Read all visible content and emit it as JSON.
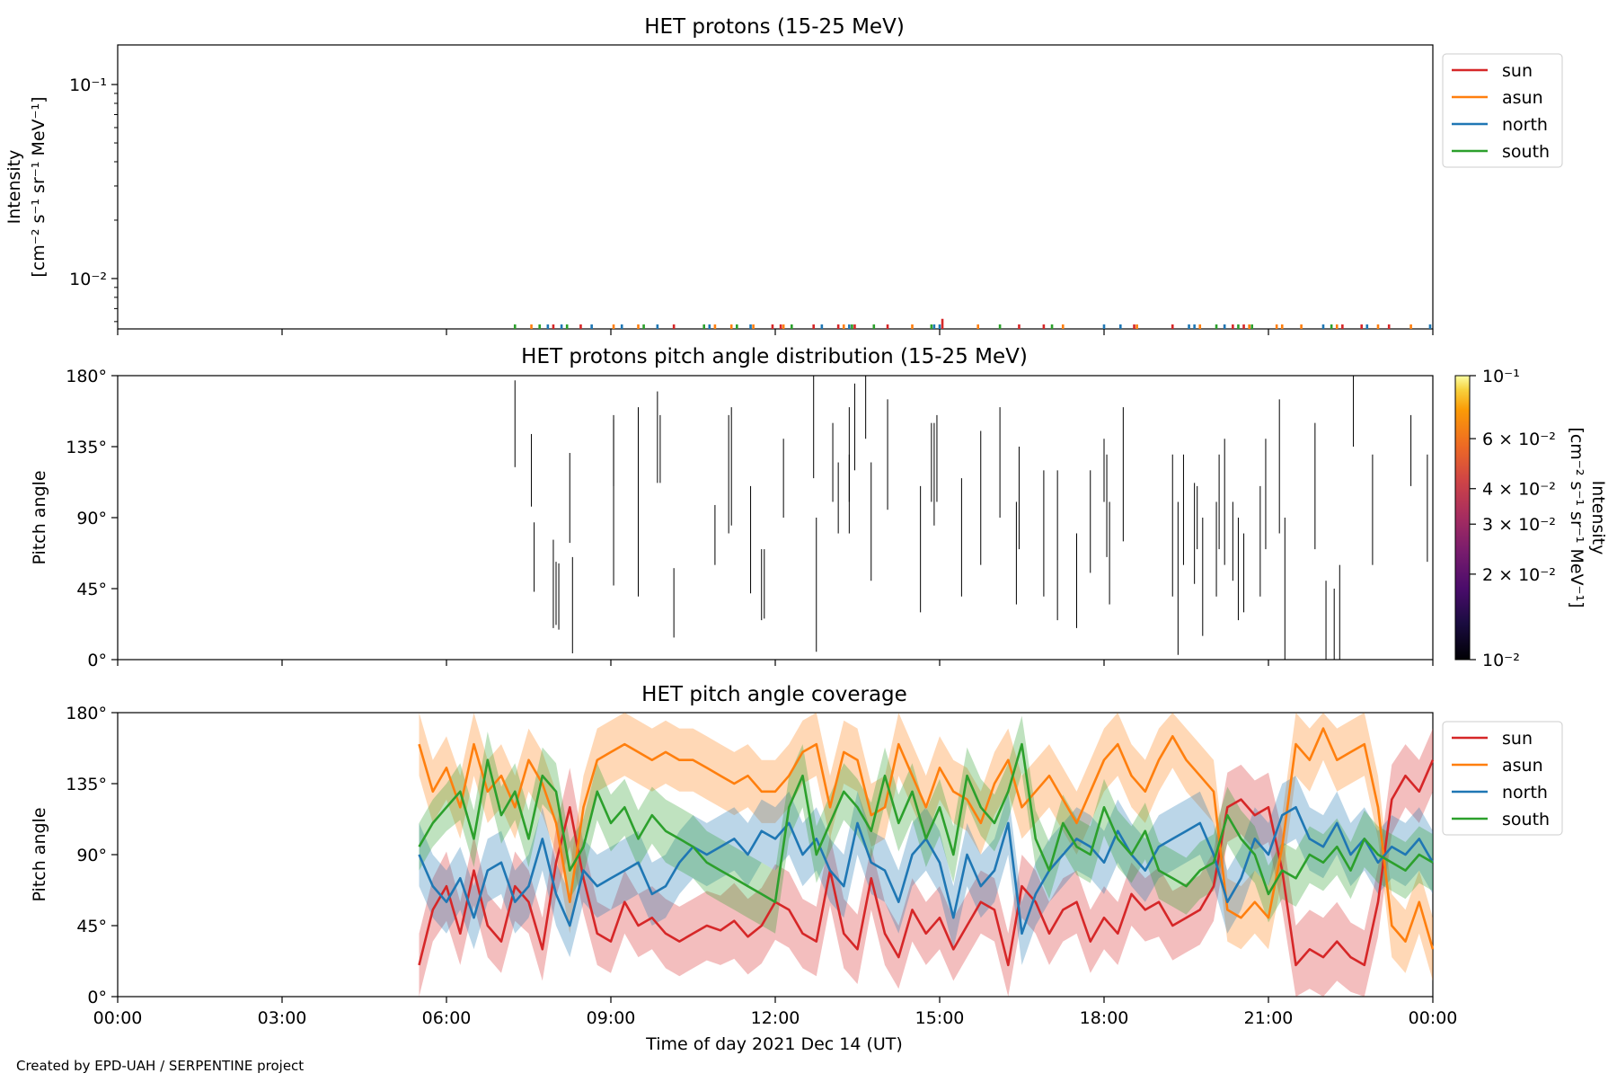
{
  "footer": "Created by EPD-UAH / SERPENTINE project",
  "x_ticks": [
    "00:00",
    "03:00",
    "06:00",
    "09:00",
    "12:00",
    "15:00",
    "18:00",
    "21:00",
    "00:00"
  ],
  "xlabel": "Time of day 2021 Dec 14 (UT)",
  "colors": {
    "sun": "#d62728",
    "asun": "#ff7f0e",
    "north": "#1f77b4",
    "south": "#2ca02c"
  },
  "chart_data": [
    {
      "type": "line",
      "title": "HET protons (15-25 MeV)",
      "ylabel_line1": "Intensity",
      "ylabel_line2": "[cm⁻² s⁻¹ sr⁻¹ MeV⁻¹]",
      "yscale": "log",
      "ylim": [
        0.0055,
        0.16
      ],
      "yticks": [
        {
          "v": 0.1,
          "label": "10⁻¹"
        },
        {
          "v": 0.01,
          "label": "10⁻²"
        }
      ],
      "xlim_hours": [
        0,
        24
      ],
      "legend": [
        "sun",
        "asun",
        "north",
        "south"
      ],
      "legend_position": "upper-right-outside",
      "series": [
        {
          "name": "sun",
          "x_hours": [
            7.95,
            8.45,
            10.15,
            11.95,
            12.1,
            12.7,
            13.15,
            13.45,
            14.05,
            15.05,
            16.45,
            16.9,
            18.55,
            19.25,
            20.2,
            20.35,
            20.55,
            22.35,
            22.7,
            23.2
          ],
          "y": [
            0.0058,
            0.0058,
            0.0058,
            0.0058,
            0.0058,
            0.0058,
            0.0058,
            0.0058,
            0.0058,
            0.0062,
            0.0058,
            0.0058,
            0.0058,
            0.0058,
            0.0058,
            0.0058,
            0.0058,
            0.0058,
            0.0058,
            0.0058
          ]
        },
        {
          "name": "asun",
          "x_hours": [
            7.55,
            9.05,
            9.5,
            10.9,
            11.2,
            11.6,
            12.15,
            13.25,
            14.5,
            15.7,
            17.25,
            18.6,
            19.75,
            20.65,
            21.15,
            21.25,
            21.6,
            22.25,
            23.0,
            23.6
          ],
          "y": [
            0.0058,
            0.0058,
            0.0058,
            0.0058,
            0.0058,
            0.0058,
            0.0058,
            0.0058,
            0.0058,
            0.0058,
            0.0058,
            0.0058,
            0.0058,
            0.0058,
            0.0058,
            0.0058,
            0.0058,
            0.0058,
            0.0058,
            0.0058
          ]
        },
        {
          "name": "north",
          "x_hours": [
            7.85,
            8.1,
            8.65,
            9.2,
            9.85,
            10.8,
            11.55,
            12.85,
            13.35,
            14.9,
            15.0,
            18.0,
            18.3,
            19.55,
            19.65,
            20.2,
            22.0,
            22.8,
            23.95
          ],
          "y": [
            0.0058,
            0.0058,
            0.0058,
            0.0058,
            0.0058,
            0.0058,
            0.0058,
            0.0058,
            0.0058,
            0.0058,
            0.0058,
            0.0058,
            0.0058,
            0.0058,
            0.0058,
            0.0058,
            0.0058,
            0.0058,
            0.0058
          ]
        },
        {
          "name": "south",
          "x_hours": [
            7.25,
            7.7,
            8.2,
            9.6,
            10.7,
            11.3,
            12.3,
            13.4,
            13.8,
            14.85,
            16.1,
            17.05,
            20.05,
            20.45,
            20.7,
            22.15
          ],
          "y": [
            0.0058,
            0.0058,
            0.0058,
            0.0058,
            0.0058,
            0.0058,
            0.0058,
            0.0058,
            0.0058,
            0.0058,
            0.0058,
            0.0058,
            0.0058,
            0.0058,
            0.0058,
            0.0058
          ]
        }
      ]
    },
    {
      "type": "heatmap",
      "title": "HET protons pitch angle distribution (15-25 MeV)",
      "ylabel": "Pitch angle",
      "ylim": [
        0,
        180
      ],
      "yticks": [
        "0°",
        "45°",
        "90°",
        "135°",
        "180°"
      ],
      "colorbar": {
        "label_line1": "Intensity",
        "label_line2": "[cm⁻² s⁻¹ sr⁻¹ MeV⁻¹]",
        "scale": "log",
        "range": [
          0.01,
          0.1
        ],
        "ticks": [
          {
            "v": 0.1,
            "label": "10⁻¹"
          },
          {
            "v": 0.06,
            "label": "6 × 10⁻²"
          },
          {
            "v": 0.04,
            "label": "4 × 10⁻²"
          },
          {
            "v": 0.03,
            "label": "3 × 10⁻²"
          },
          {
            "v": 0.02,
            "label": "2 × 10⁻²"
          },
          {
            "v": 0.01,
            "label": "10⁻²"
          }
        ]
      },
      "segments": [
        [
          7.25,
          122,
          177
        ],
        [
          7.55,
          97,
          143
        ],
        [
          7.6,
          43,
          87
        ],
        [
          7.95,
          20,
          76
        ],
        [
          8.0,
          22,
          62
        ],
        [
          8.05,
          19,
          61
        ],
        [
          8.25,
          74,
          131
        ],
        [
          8.3,
          4,
          65
        ],
        [
          9.05,
          47,
          152
        ],
        [
          9.05,
          110,
          155
        ],
        [
          9.5,
          55,
          160
        ],
        [
          9.5,
          40,
          90
        ],
        [
          9.85,
          112,
          170
        ],
        [
          9.9,
          112,
          155
        ],
        [
          10.15,
          14,
          58
        ],
        [
          10.9,
          60,
          98
        ],
        [
          11.15,
          80,
          155
        ],
        [
          11.2,
          85,
          160
        ],
        [
          11.55,
          42,
          110
        ],
        [
          11.75,
          25,
          70
        ],
        [
          11.8,
          26,
          70
        ],
        [
          12.15,
          90,
          140
        ],
        [
          12.7,
          115,
          180
        ],
        [
          12.75,
          5,
          90
        ],
        [
          13.05,
          100,
          150
        ],
        [
          13.15,
          80,
          125
        ],
        [
          13.35,
          100,
          160
        ],
        [
          13.35,
          80,
          130
        ],
        [
          13.45,
          120,
          175
        ],
        [
          13.65,
          140,
          180
        ],
        [
          13.75,
          50,
          125
        ],
        [
          14.05,
          95,
          165
        ],
        [
          14.65,
          30,
          110
        ],
        [
          14.85,
          100,
          150
        ],
        [
          14.9,
          85,
          150
        ],
        [
          14.95,
          100,
          155
        ],
        [
          15.4,
          40,
          115
        ],
        [
          15.75,
          60,
          145
        ],
        [
          16.1,
          90,
          160
        ],
        [
          16.4,
          35,
          100
        ],
        [
          16.45,
          70,
          135
        ],
        [
          16.9,
          40,
          120
        ],
        [
          17.15,
          25,
          120
        ],
        [
          17.5,
          20,
          80
        ],
        [
          17.75,
          55,
          120
        ],
        [
          18.0,
          100,
          140
        ],
        [
          18.05,
          65,
          130
        ],
        [
          18.1,
          35,
          100
        ],
        [
          18.35,
          75,
          160
        ],
        [
          19.25,
          40,
          130
        ],
        [
          19.35,
          3,
          100
        ],
        [
          19.45,
          60,
          130
        ],
        [
          19.65,
          48,
          112
        ],
        [
          19.7,
          70,
          110
        ],
        [
          19.8,
          15,
          90
        ],
        [
          20.05,
          40,
          100
        ],
        [
          20.1,
          70,
          130
        ],
        [
          20.2,
          60,
          140
        ],
        [
          20.35,
          50,
          100
        ],
        [
          20.45,
          25,
          90
        ],
        [
          20.55,
          30,
          80
        ],
        [
          20.85,
          40,
          110
        ],
        [
          20.95,
          70,
          140
        ],
        [
          21.2,
          80,
          165
        ],
        [
          21.3,
          0,
          90
        ],
        [
          21.85,
          70,
          150
        ],
        [
          22.05,
          0,
          50
        ],
        [
          22.2,
          0,
          45
        ],
        [
          22.3,
          0,
          60
        ],
        [
          22.55,
          135,
          180
        ],
        [
          22.9,
          60,
          130
        ],
        [
          23.6,
          110,
          155
        ],
        [
          23.9,
          62,
          130
        ],
        [
          24.0,
          95,
          170
        ]
      ]
    },
    {
      "type": "line",
      "title": "HET pitch angle coverage",
      "ylabel": "Pitch angle",
      "ylim": [
        0,
        180
      ],
      "yticks": [
        "0°",
        "45°",
        "90°",
        "135°",
        "180°"
      ],
      "legend": [
        "sun",
        "asun",
        "north",
        "south"
      ],
      "legend_position": "upper-right-outside",
      "x_hours": [
        5.5,
        5.75,
        6.0,
        6.25,
        6.5,
        6.75,
        7.0,
        7.25,
        7.5,
        7.75,
        8.0,
        8.25,
        8.5,
        8.75,
        9.0,
        9.25,
        9.5,
        9.75,
        10.0,
        10.25,
        10.5,
        10.75,
        11.0,
        11.25,
        11.5,
        11.75,
        12.0,
        12.25,
        12.5,
        12.75,
        13.0,
        13.25,
        13.5,
        13.75,
        14.0,
        14.25,
        14.5,
        14.75,
        15.0,
        15.25,
        15.5,
        15.75,
        16.0,
        16.25,
        16.5,
        16.75,
        17.0,
        17.25,
        17.5,
        17.75,
        18.0,
        18.25,
        18.5,
        18.75,
        19.0,
        19.25,
        19.5,
        19.75,
        20.0,
        20.25,
        20.5,
        20.75,
        21.0,
        21.25,
        21.5,
        21.75,
        22.0,
        22.25,
        22.5,
        22.75,
        23.0,
        23.25,
        23.5,
        23.75,
        24.0
      ],
      "series": [
        {
          "name": "sun",
          "values": [
            20,
            55,
            70,
            40,
            80,
            45,
            35,
            70,
            60,
            30,
            85,
            120,
            75,
            40,
            35,
            60,
            45,
            50,
            40,
            35,
            40,
            45,
            42,
            48,
            38,
            45,
            60,
            55,
            40,
            35,
            80,
            40,
            30,
            75,
            40,
            25,
            55,
            40,
            50,
            30,
            45,
            60,
            55,
            20,
            70,
            60,
            40,
            55,
            60,
            35,
            50,
            40,
            65,
            55,
            60,
            45,
            50,
            55,
            70,
            120,
            125,
            115,
            120,
            80,
            20,
            30,
            25,
            35,
            25,
            20,
            60,
            125,
            140,
            130,
            150
          ],
          "band": [
            20,
            20,
            22,
            20,
            22,
            20,
            20,
            22,
            20,
            20,
            22,
            25,
            22,
            20,
            20,
            20,
            20,
            20,
            22,
            22,
            22,
            22,
            22,
            24,
            24,
            24,
            24,
            24,
            22,
            22,
            22,
            22,
            22,
            20,
            20,
            20,
            20,
            20,
            20,
            20,
            20,
            20,
            20,
            20,
            20,
            20,
            20,
            20,
            20,
            20,
            20,
            20,
            20,
            20,
            22,
            22,
            22,
            22,
            22,
            22,
            22,
            22,
            22,
            25,
            25,
            25,
            25,
            25,
            22,
            22,
            22,
            22,
            20,
            20,
            20
          ]
        },
        {
          "name": "asun",
          "values": [
            160,
            130,
            145,
            120,
            160,
            130,
            140,
            120,
            150,
            135,
            110,
            60,
            120,
            150,
            155,
            160,
            155,
            150,
            155,
            150,
            150,
            145,
            140,
            135,
            140,
            130,
            130,
            140,
            155,
            160,
            120,
            155,
            150,
            115,
            120,
            160,
            140,
            120,
            145,
            130,
            125,
            110,
            135,
            150,
            120,
            130,
            140,
            125,
            110,
            130,
            150,
            160,
            140,
            130,
            150,
            165,
            150,
            140,
            130,
            55,
            50,
            60,
            50,
            95,
            160,
            150,
            170,
            150,
            155,
            160,
            120,
            45,
            35,
            60,
            30
          ]
        },
        {
          "name": "north",
          "values": [
            90,
            70,
            60,
            75,
            50,
            80,
            85,
            60,
            70,
            100,
            65,
            45,
            80,
            70,
            75,
            80,
            85,
            65,
            70,
            85,
            95,
            90,
            95,
            100,
            90,
            105,
            100,
            110,
            90,
            100,
            80,
            70,
            110,
            85,
            80,
            60,
            90,
            100,
            85,
            50,
            90,
            70,
            80,
            110,
            40,
            65,
            80,
            90,
            100,
            95,
            85,
            105,
            90,
            80,
            95,
            100,
            105,
            110,
            90,
            60,
            75,
            100,
            90,
            115,
            120,
            100,
            95,
            110,
            90,
            100,
            85,
            95,
            90,
            100,
            85
          ]
        },
        {
          "name": "south",
          "values": [
            95,
            110,
            120,
            130,
            100,
            150,
            115,
            130,
            100,
            140,
            130,
            80,
            95,
            130,
            110,
            120,
            100,
            115,
            105,
            100,
            95,
            85,
            80,
            75,
            70,
            65,
            60,
            120,
            140,
            90,
            110,
            130,
            120,
            105,
            140,
            110,
            130,
            100,
            120,
            90,
            140,
            120,
            110,
            130,
            160,
            100,
            80,
            110,
            95,
            90,
            120,
            100,
            90,
            105,
            80,
            75,
            70,
            80,
            85,
            115,
            100,
            90,
            65,
            80,
            75,
            90,
            85,
            95,
            80,
            100,
            90,
            85,
            80,
            90,
            85
          ],
          "band": [
            15,
            15,
            15,
            18,
            18,
            18,
            18,
            18,
            18,
            18,
            18,
            18,
            18,
            18,
            18,
            18,
            18,
            18,
            20,
            20,
            20,
            20,
            20,
            20,
            20,
            20,
            20,
            20,
            20,
            18,
            18,
            18,
            18,
            18,
            18,
            18,
            18,
            18,
            18,
            18,
            18,
            18,
            18,
            18,
            18,
            18,
            18,
            18,
            18,
            18,
            18,
            18,
            18,
            18,
            18,
            18,
            18,
            18,
            18,
            18,
            18,
            18,
            18,
            18,
            18,
            18,
            18,
            18,
            18,
            18,
            18,
            18,
            18,
            18,
            18
          ]
        }
      ]
    }
  ]
}
